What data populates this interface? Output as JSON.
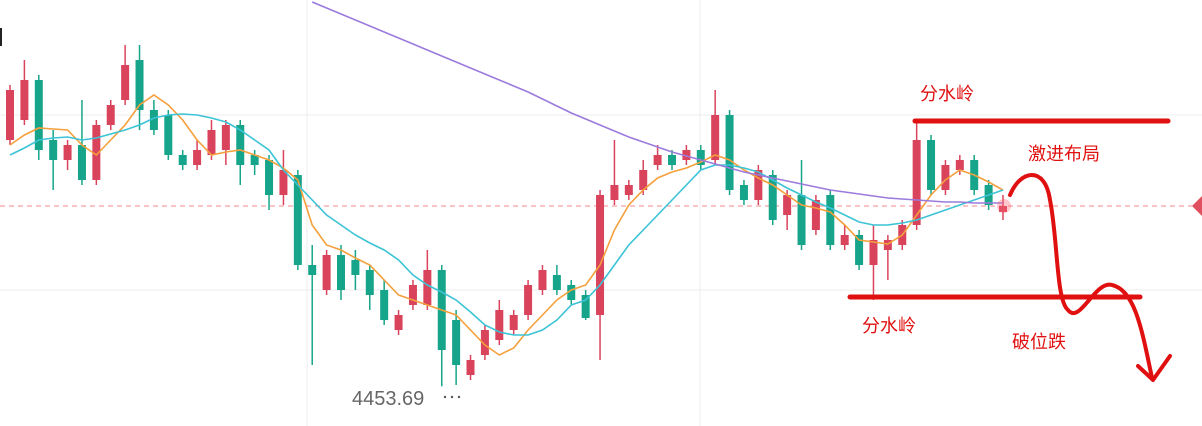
{
  "chart_data": {
    "type": "candlestick",
    "ylim": [
      4414,
      4840
    ],
    "up_color": "#d9445c",
    "down_color": "#16a58a",
    "open": [
      4700,
      4720,
      4760,
      4700,
      4680,
      4695,
      4660,
      4715,
      4740,
      4780,
      4730,
      4725,
      4685,
      4675,
      4685,
      4690,
      4715,
      4685,
      4680,
      4645,
      4665,
      4575,
      4550,
      4585,
      4580,
      4570,
      4550,
      4510,
      4535,
      4535,
      4570,
      4520,
      4465,
      4485,
      4500,
      4510,
      4525,
      4550,
      4565,
      4555,
      4545,
      4525,
      4640,
      4645,
      4650,
      4675,
      4685,
      4680,
      4690,
      4680,
      4725,
      4655,
      4640,
      4665,
      4625,
      4645,
      4610,
      4645,
      4595,
      4605,
      4575,
      4590,
      4595,
      4615,
      4700,
      4650,
      4670,
      4680,
      4655,
      4628
    ],
    "high": [
      4755,
      4780,
      4765,
      4710,
      4700,
      4740,
      4720,
      4740,
      4795,
      4795,
      4740,
      4730,
      4690,
      4700,
      4720,
      4720,
      4720,
      4690,
      4685,
      4690,
      4670,
      4595,
      4590,
      4595,
      4590,
      4575,
      4560,
      4530,
      4560,
      4590,
      4575,
      4530,
      4485,
      4515,
      4540,
      4530,
      4560,
      4575,
      4575,
      4560,
      4550,
      4650,
      4700,
      4660,
      4680,
      4695,
      4690,
      4695,
      4695,
      4750,
      4730,
      4660,
      4675,
      4670,
      4650,
      4680,
      4645,
      4650,
      4615,
      4610,
      4615,
      4605,
      4620,
      4720,
      4705,
      4680,
      4685,
      4685,
      4660,
      4645
    ],
    "low": [
      4695,
      4715,
      4680,
      4650,
      4670,
      4655,
      4655,
      4710,
      4735,
      4710,
      4705,
      4680,
      4670,
      4670,
      4680,
      4675,
      4655,
      4665,
      4630,
      4635,
      4570,
      4475,
      4545,
      4540,
      4550,
      4530,
      4515,
      4505,
      4530,
      4530,
      4453.69,
      4455,
      4460,
      4480,
      4495,
      4505,
      4520,
      4545,
      4545,
      4535,
      4520,
      4480,
      4635,
      4640,
      4645,
      4670,
      4670,
      4675,
      4670,
      4675,
      4645,
      4635,
      4635,
      4615,
      4610,
      4590,
      4605,
      4590,
      4590,
      4570,
      4540,
      4560,
      4590,
      4610,
      4645,
      4645,
      4665,
      4645,
      4630,
      4620
    ],
    "close": [
      4750,
      4760,
      4690,
      4680,
      4695,
      4660,
      4715,
      4735,
      4775,
      4730,
      4710,
      4685,
      4675,
      4690,
      4710,
      4715,
      4675,
      4675,
      4645,
      4670,
      4575,
      4565,
      4585,
      4550,
      4565,
      4545,
      4520,
      4525,
      4555,
      4570,
      4490,
      4475,
      4480,
      4510,
      4530,
      4525,
      4555,
      4570,
      4550,
      4540,
      4522,
      4645,
      4655,
      4655,
      4670,
      4685,
      4675,
      4690,
      4675,
      4725,
      4650,
      4640,
      4670,
      4620,
      4645,
      4595,
      4640,
      4595,
      4605,
      4575,
      4600,
      4600,
      4615,
      4700,
      4650,
      4675,
      4680,
      4650,
      4635,
      4634
    ],
    "ma_lines": [
      {
        "color": "#f4a03c",
        "values": [
          4695,
          4705,
          4712,
          4711,
          4710,
          4695,
          4685,
          4700,
          4715,
          4735,
          4745,
          4735,
          4720,
          4700,
          4685,
          4688,
          4690,
          4685,
          4680,
          4672,
          4660,
          4615,
          4595,
          4590,
          4582,
          4575,
          4560,
          4545,
          4540,
          4535,
          4530,
          4525,
          4510,
          4495,
          4485,
          4492,
          4510,
          4525,
          4540,
          4550,
          4555,
          4575,
          4610,
          4635,
          4650,
          4662,
          4668,
          4672,
          4678,
          4685,
          4680,
          4670,
          4662,
          4655,
          4645,
          4635,
          4632,
          4628,
          4615,
          4600,
          4598,
          4596,
          4605,
          4625,
          4645,
          4660,
          4670,
          4665,
          4658,
          4650
        ]
      },
      {
        "color": "#3cc3d6",
        "values": [
          4685,
          4692,
          4700,
          4702,
          4703,
          4700,
          4702,
          4706,
          4710,
          4715,
          4722,
          4725,
          4726,
          4725,
          4722,
          4718,
          4710,
          4700,
          4690,
          4670,
          4655,
          4640,
          4625,
          4615,
          4605,
          4597,
          4590,
          4580,
          4565,
          4555,
          4548,
          4540,
          4528,
          4515,
          4508,
          4505,
          4505,
          4510,
          4520,
          4535,
          4540,
          4555,
          4575,
          4595,
          4610,
          4625,
          4640,
          4655,
          4670,
          4675,
          4675,
          4672,
          4668,
          4660,
          4652,
          4645,
          4638,
          4632,
          4625,
          4618,
          4615,
          4615,
          4617,
          4620,
          4625,
          4630,
          4635,
          4640,
          4645,
          4650
        ]
      },
      {
        "color": "#9c7bdc",
        "values": [
          null,
          null,
          null,
          null,
          null,
          null,
          null,
          null,
          null,
          null,
          null,
          null,
          null,
          null,
          null,
          null,
          null,
          null,
          null,
          null,
          null,
          4838,
          4832,
          4826,
          4820,
          4814,
          4808,
          4802,
          4796,
          4790,
          4784,
          4778,
          4772,
          4766,
          4760,
          4754,
          4748,
          4741,
          4734,
          4727,
          4721,
          4715,
          4709,
          4703,
          4698,
          4693,
          4688,
          4684,
          4680,
          4676,
          4672,
          4668,
          4665,
          4662,
          4659,
          4656,
          4653,
          4650,
          4648,
          4646,
          4644,
          4642,
          4641,
          4640,
          4639,
          4638,
          4638,
          4637,
          4637,
          4637
        ]
      }
    ],
    "current_price": 4634,
    "levels": [
      4719,
      4543
    ],
    "annotations": [
      "分水岭",
      "激进布局",
      "分水岭",
      "破位跌"
    ]
  }
}
